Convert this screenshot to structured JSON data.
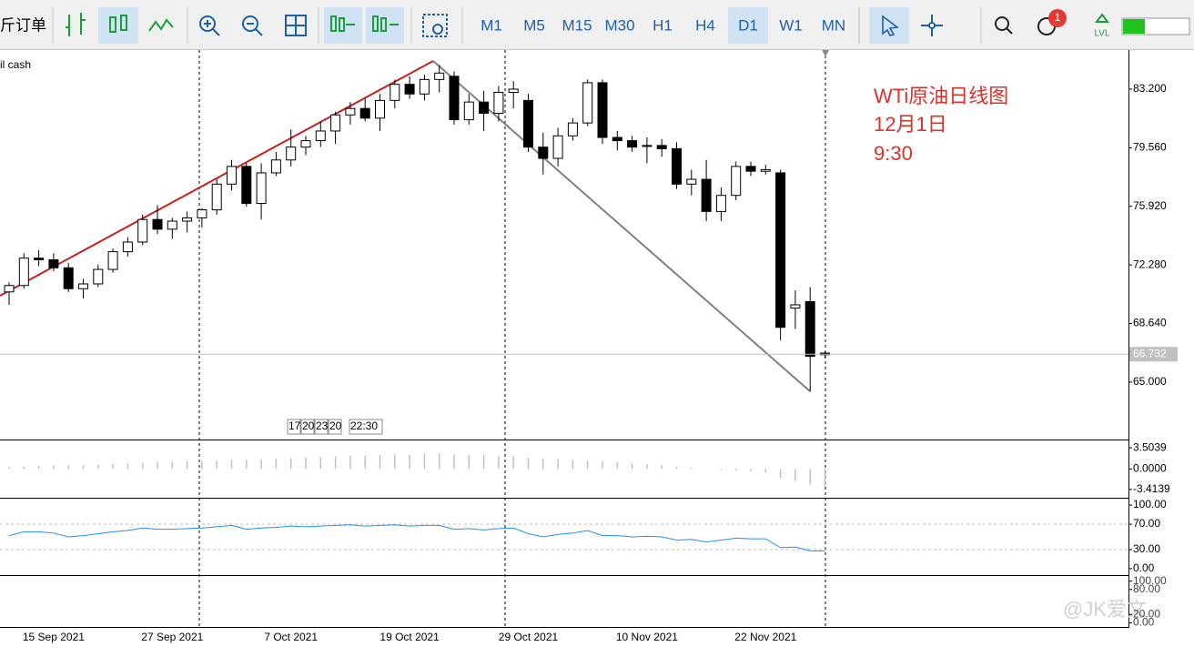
{
  "toolbar": {
    "order_label": "斤订单",
    "timeframes": [
      "M1",
      "M5",
      "M15",
      "M30",
      "H1",
      "H4",
      "D1",
      "W1",
      "MN"
    ],
    "active_index": 6,
    "badge": "1",
    "lvl": "LVL"
  },
  "chart_data": {
    "type": "candlestick",
    "symbol": "il cash",
    "annotation": [
      "WTi原油日线图",
      "12月1日",
      "9:30"
    ],
    "watermark": "@JK爱文",
    "time_marks": [
      "17",
      "20",
      "23",
      "20",
      "22:30"
    ],
    "categories": [
      null,
      null,
      null,
      "15 Sep 2021",
      null,
      null,
      null,
      null,
      null,
      null,
      null,
      "27 Sep 2021",
      null,
      null,
      null,
      null,
      null,
      null,
      null,
      "7 Oct 2021",
      null,
      null,
      null,
      null,
      null,
      null,
      null,
      "19 Oct 2021",
      null,
      null,
      null,
      null,
      null,
      null,
      null,
      "29 Oct 2021",
      null,
      null,
      null,
      null,
      null,
      null,
      null,
      "10 Nov 2021",
      null,
      null,
      null,
      null,
      null,
      null,
      null,
      "22 Nov 2021",
      null,
      null,
      null,
      null
    ],
    "open": [
      70.6,
      71.0,
      72.7,
      72.6,
      72.1,
      70.8,
      71.1,
      72.0,
      73.1,
      73.7,
      75.1,
      74.5,
      75.0,
      75.2,
      75.7,
      77.3,
      78.4,
      76.1,
      78.0,
      78.8,
      79.6,
      80.0,
      80.6,
      81.6,
      82.0,
      81.4,
      82.5,
      83.5,
      82.9,
      83.8,
      84.0,
      81.3,
      82.4,
      81.7,
      83.0,
      82.5,
      79.6,
      78.9,
      80.3,
      81.1,
      83.6,
      80.2,
      80.0,
      79.7,
      79.7,
      79.5,
      77.3,
      77.6,
      75.6,
      76.6,
      78.4,
      78.1,
      78.0,
      69.6,
      70.0,
      66.8
    ],
    "high": [
      71.2,
      73.0,
      73.2,
      73.0,
      72.4,
      71.4,
      72.3,
      73.3,
      74.0,
      75.4,
      76.0,
      75.2,
      75.6,
      75.8,
      77.6,
      78.8,
      78.6,
      78.6,
      79.3,
      80.7,
      80.3,
      81.2,
      81.8,
      82.4,
      82.6,
      82.9,
      83.8,
      84.0,
      84.1,
      84.7,
      84.3,
      82.9,
      83.1,
      83.4,
      83.7,
      82.9,
      80.5,
      80.8,
      81.4,
      83.8,
      83.8,
      80.6,
      80.3,
      80.2,
      80.1,
      79.9,
      78.2,
      78.8,
      77.1,
      78.7,
      78.7,
      78.5,
      78.2,
      70.7,
      70.9,
      66.9
    ],
    "low": [
      69.8,
      70.8,
      72.2,
      71.9,
      70.6,
      70.2,
      70.9,
      71.8,
      72.8,
      73.5,
      74.2,
      73.9,
      74.3,
      74.6,
      75.4,
      76.9,
      75.9,
      75.1,
      77.8,
      78.4,
      79.1,
      79.6,
      79.8,
      81.0,
      81.2,
      80.6,
      82.0,
      82.6,
      82.5,
      83.0,
      81.0,
      81.0,
      80.6,
      81.2,
      82.0,
      79.3,
      77.9,
      78.4,
      80.0,
      80.9,
      79.8,
      79.4,
      79.3,
      78.6,
      79.0,
      77.0,
      76.6,
      75.0,
      75.0,
      76.3,
      77.8,
      77.9,
      67.6,
      68.3,
      64.4,
      66.5
    ],
    "close": [
      71.0,
      72.7,
      72.6,
      72.1,
      70.8,
      71.1,
      72.0,
      73.1,
      73.7,
      75.1,
      74.5,
      75.0,
      75.2,
      75.7,
      77.3,
      78.4,
      76.1,
      78.0,
      78.8,
      79.6,
      80.0,
      80.6,
      81.6,
      82.0,
      81.4,
      82.5,
      83.5,
      82.9,
      83.8,
      84.2,
      81.3,
      82.4,
      81.7,
      83.0,
      83.2,
      79.6,
      78.9,
      80.3,
      81.1,
      83.6,
      80.2,
      80.0,
      79.6,
      79.7,
      79.5,
      77.3,
      77.6,
      75.6,
      76.6,
      78.4,
      78.1,
      78.2,
      68.4,
      69.8,
      66.6,
      66.7
    ],
    "up_color": "#ffffff",
    "down_color": "#000000",
    "ylim": [
      61.43,
      85.63
    ],
    "yticks": [
      {
        "value": 83.2,
        "label": "83.200"
      },
      {
        "value": 79.56,
        "label": "79.560"
      },
      {
        "value": 75.92,
        "label": "75.920"
      },
      {
        "value": 72.28,
        "label": "72.280"
      },
      {
        "value": 68.64,
        "label": "68.640"
      },
      {
        "value": 65.0,
        "label": "65.000"
      }
    ],
    "current_price": {
      "value": 66.732,
      "label": "66.732"
    },
    "macd": {
      "color": "#c0c0c0",
      "values": [
        0.3,
        0.4,
        0.5,
        0.6,
        0.6,
        0.6,
        0.7,
        0.8,
        0.9,
        1.0,
        1.1,
        1.2,
        1.3,
        1.3,
        1.4,
        1.5,
        1.5,
        1.6,
        1.7,
        1.8,
        1.9,
        2.0,
        2.1,
        2.2,
        2.2,
        2.3,
        2.4,
        2.4,
        2.5,
        2.5,
        2.4,
        2.3,
        2.3,
        2.2,
        2.1,
        1.9,
        1.7,
        1.6,
        1.5,
        1.4,
        1.3,
        1.1,
        0.9,
        0.8,
        0.6,
        0.4,
        0.2,
        0.0,
        -0.2,
        -0.3,
        -0.4,
        -0.6,
        -1.5,
        -2.0,
        -2.6,
        -2.9
      ],
      "ylim": [
        -4.64,
        4.58
      ],
      "yticks": [
        {
          "value": 3.5039,
          "label": "3.5039"
        },
        {
          "value": 0,
          "label": "0.0000"
        },
        {
          "value": -3.4139,
          "label": "-3.4139"
        }
      ]
    },
    "rsi": {
      "color": "#1e90ff",
      "values": [
        52,
        58,
        58,
        56,
        50,
        52,
        55,
        58,
        60,
        64,
        62,
        62,
        63,
        64,
        66,
        68,
        62,
        64,
        65,
        67,
        66,
        67,
        68,
        69,
        67,
        68,
        69,
        67,
        68,
        68,
        62,
        63,
        61,
        63,
        64,
        55,
        50,
        54,
        56,
        60,
        52,
        52,
        50,
        51,
        50,
        45,
        46,
        42,
        45,
        48,
        47,
        47,
        33,
        34,
        28,
        28
      ],
      "ylim": [
        -8.7,
        108.7
      ],
      "yticks": [
        {
          "value": 100,
          "label": "100.00"
        },
        {
          "value": 70,
          "label": "70.00"
        },
        {
          "value": 30,
          "label": "30.00"
        },
        {
          "value": 0,
          "label": "0.00"
        }
      ]
    },
    "stoch": {
      "ylim": [
        -10,
        110
      ],
      "yticks": [
        {
          "value": 100,
          "label": "100.00"
        },
        {
          "value": 80,
          "label": "80.00"
        },
        {
          "value": 20,
          "label": "20.00"
        },
        {
          "value": 0,
          "label": "0.00"
        }
      ]
    }
  }
}
